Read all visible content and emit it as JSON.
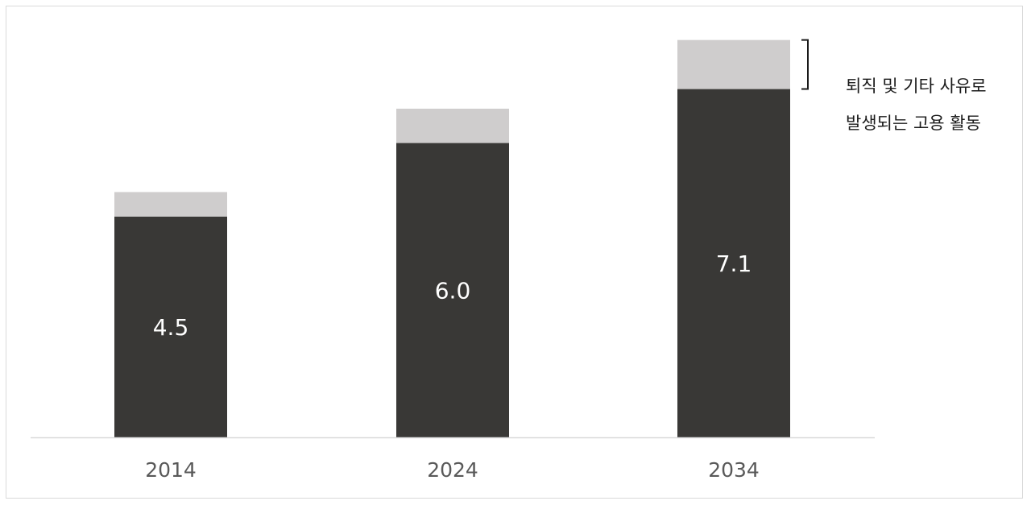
{
  "chart_data": {
    "type": "bar",
    "stacked": true,
    "categories": [
      "2014",
      "2024",
      "2034"
    ],
    "series": [
      {
        "values": [
          4.5,
          6.0,
          7.1
        ],
        "color": "#393836",
        "labels": [
          "4.5",
          "6.0",
          "7.1"
        ]
      },
      {
        "values": [
          0.5,
          0.7,
          1.0
        ],
        "color": "#cfcdcd"
      }
    ],
    "annotation": {
      "line1": "퇴직 및 기타 사유로",
      "line2": "발생되는 고용 활동",
      "series_index": 1
    },
    "grid": false,
    "ylim": [
      0,
      8.6
    ]
  }
}
